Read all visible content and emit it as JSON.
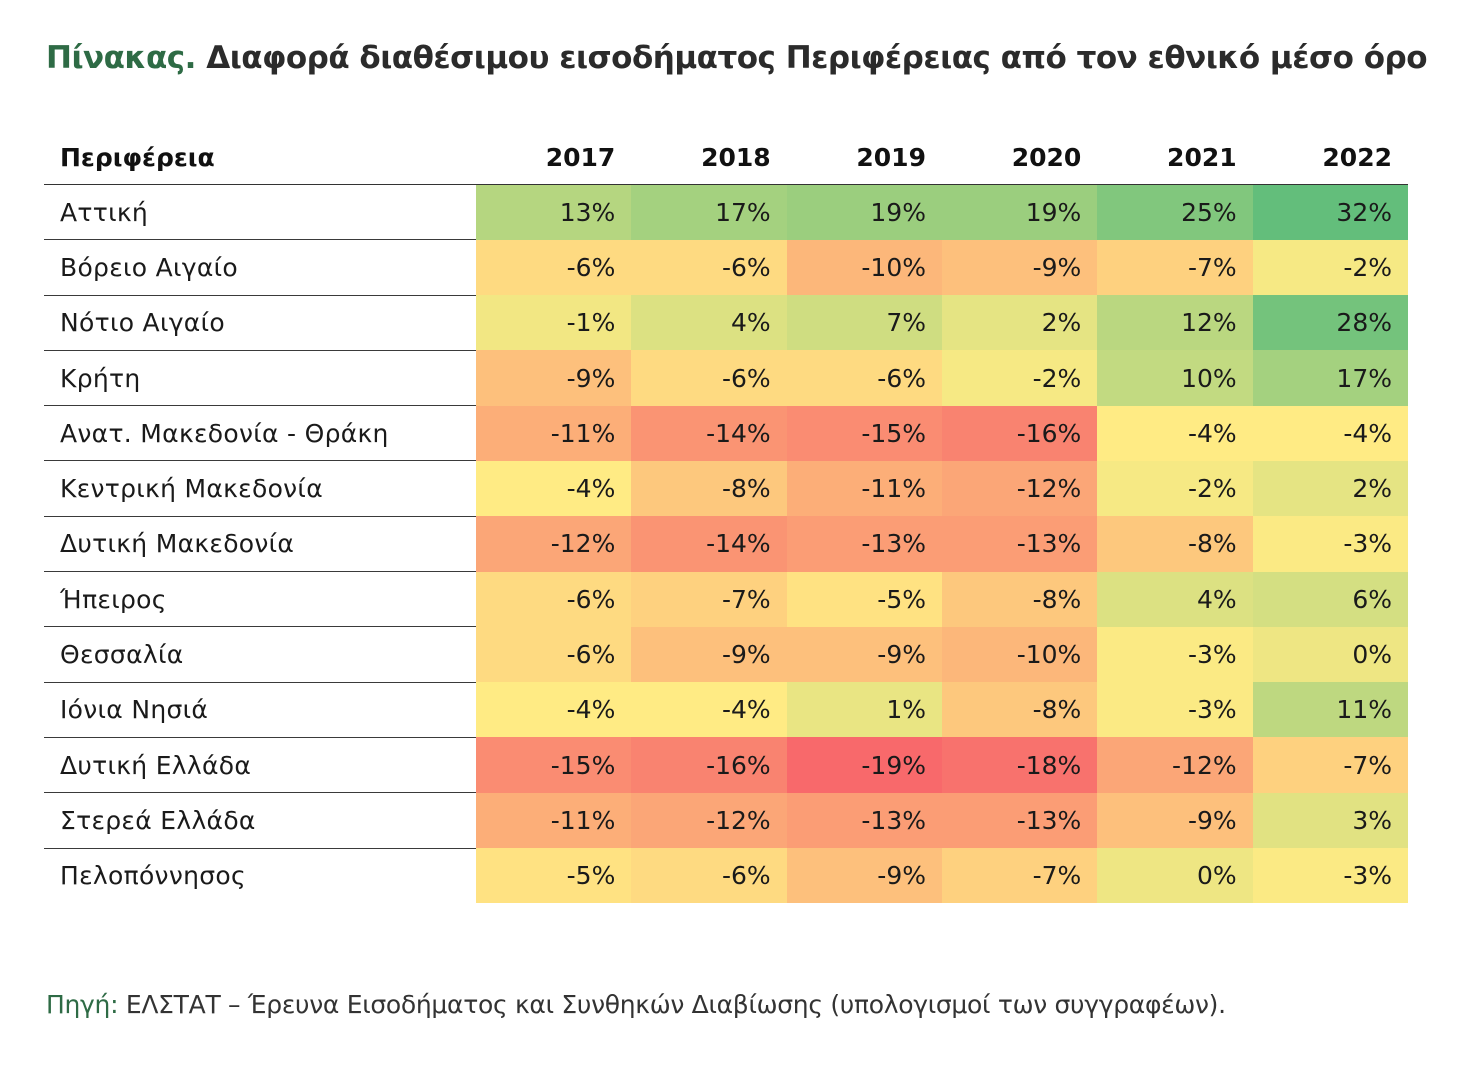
{
  "title": {
    "prefix": "Πίνακας.",
    "text": "Διαφορά διαθέσιμου εισοδήματος Περιφέρειας από τον εθνικό μέσο όρο"
  },
  "source": {
    "prefix": "Πηγή:",
    "text": "ΕΛΣΤΑΤ – Έρευνα Εισοδήματος και Συνθηκών Διαβίωσης (υπολογισμοί των συγγραφέων)."
  },
  "chart_data": {
    "type": "heatmap",
    "row_header": "Περιφέρεια",
    "columns": [
      "2017",
      "2018",
      "2019",
      "2020",
      "2021",
      "2022"
    ],
    "rows": [
      {
        "name": "Αττική",
        "values": [
          13,
          17,
          19,
          19,
          25,
          32
        ]
      },
      {
        "name": "Βόρειο Αιγαίο",
        "values": [
          -6,
          -6,
          -10,
          -9,
          -7,
          -2
        ]
      },
      {
        "name": "Νότιο Αιγαίο",
        "values": [
          -1,
          4,
          7,
          2,
          12,
          28
        ]
      },
      {
        "name": "Κρήτη",
        "values": [
          -9,
          -6,
          -6,
          -2,
          10,
          17
        ]
      },
      {
        "name": "Ανατ. Μακεδονία - Θράκη",
        "values": [
          -11,
          -14,
          -15,
          -16,
          -4,
          -4
        ]
      },
      {
        "name": "Κεντρική Μακεδονία",
        "values": [
          -4,
          -8,
          -11,
          -12,
          -2,
          2
        ]
      },
      {
        "name": "Δυτική Μακεδονία",
        "values": [
          -12,
          -14,
          -13,
          -13,
          -8,
          -3
        ]
      },
      {
        "name": "Ήπειρος",
        "values": [
          -6,
          -7,
          -5,
          -8,
          4,
          6
        ]
      },
      {
        "name": "Θεσσαλία",
        "values": [
          -6,
          -9,
          -9,
          -10,
          -3,
          0
        ]
      },
      {
        "name": "Ιόνια Νησιά",
        "values": [
          -4,
          -4,
          1,
          -8,
          -3,
          11
        ]
      },
      {
        "name": "Δυτική Ελλάδα",
        "values": [
          -15,
          -16,
          -19,
          -18,
          -12,
          -7
        ]
      },
      {
        "name": "Στερεά Ελλάδα",
        "values": [
          -11,
          -12,
          -13,
          -13,
          -9,
          3
        ]
      },
      {
        "name": "Πελοπόννησος",
        "values": [
          -5,
          -6,
          -9,
          -7,
          0,
          -3
        ]
      }
    ],
    "value_suffix": "%",
    "color_scale": {
      "min": -19,
      "mid": -4,
      "max": 32,
      "min_color": "#f8696b",
      "mid_color": "#ffeb84",
      "max_color": "#63be7b"
    }
  }
}
